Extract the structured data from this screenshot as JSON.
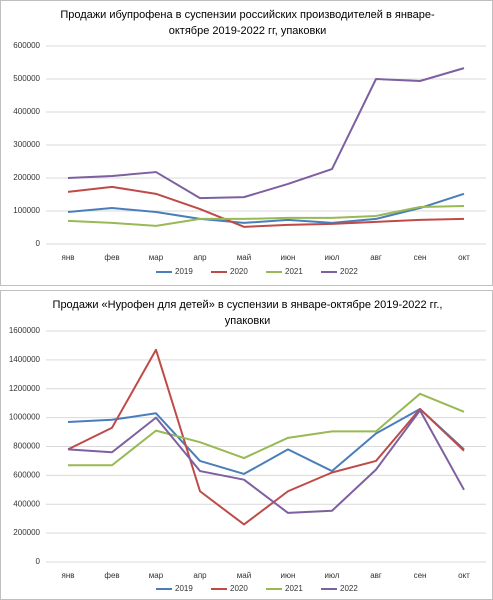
{
  "chart_data": [
    {
      "type": "line",
      "title": "Продажи ибупрофена в суспензии российских производителей в январе-октябре 2019-2022 гг, упаковки",
      "categories": [
        "янв",
        "фев",
        "мар",
        "апр",
        "май",
        "июн",
        "июл",
        "авг",
        "сен",
        "окт"
      ],
      "ylim": [
        0,
        600000
      ],
      "yticks": [
        0,
        100000,
        200000,
        300000,
        400000,
        500000,
        600000
      ],
      "grid": true,
      "legend": "bottom",
      "series": [
        {
          "name": "2019",
          "color": "#4a7ebb",
          "values": [
            97000,
            109000,
            97000,
            76000,
            64000,
            73000,
            64000,
            76000,
            109000,
            152000
          ]
        },
        {
          "name": "2020",
          "color": "#be4b48",
          "values": [
            158000,
            173000,
            152000,
            106000,
            52000,
            58000,
            61000,
            67000,
            73000,
            76000
          ]
        },
        {
          "name": "2021",
          "color": "#98b954",
          "values": [
            70000,
            64000,
            55000,
            76000,
            76000,
            79000,
            79000,
            85000,
            112000,
            115000
          ]
        },
        {
          "name": "2022",
          "color": "#7d60a0",
          "values": [
            200000,
            206000,
            218000,
            139000,
            142000,
            182000,
            227000,
            500000,
            494000,
            533000
          ]
        }
      ]
    },
    {
      "type": "line",
      "title": "Продажи «Нурофен для детей» в суспензии в январе-октябре 2019-2022 гг., упаковки",
      "categories": [
        "янв",
        "фев",
        "мар",
        "апр",
        "май",
        "июн",
        "июл",
        "авг",
        "сен",
        "окт"
      ],
      "ylim": [
        0,
        1600000
      ],
      "yticks": [
        0,
        200000,
        400000,
        600000,
        800000,
        1000000,
        1200000,
        1400000,
        1600000
      ],
      "grid": true,
      "legend": "bottom",
      "series": [
        {
          "name": "2019",
          "color": "#4a7ebb",
          "values": [
            970000,
            985000,
            1030000,
            700000,
            610000,
            780000,
            630000,
            890000,
            1060000,
            780000
          ]
        },
        {
          "name": "2020",
          "color": "#be4b48",
          "values": [
            780000,
            930000,
            1470000,
            490000,
            260000,
            490000,
            620000,
            700000,
            1060000,
            770000
          ]
        },
        {
          "name": "2021",
          "color": "#98b954",
          "values": [
            670000,
            670000,
            910000,
            830000,
            720000,
            860000,
            905000,
            905000,
            1165000,
            1040000
          ]
        },
        {
          "name": "2022",
          "color": "#7d60a0",
          "values": [
            780000,
            760000,
            1000000,
            630000,
            570000,
            340000,
            355000,
            640000,
            1050000,
            500000
          ]
        }
      ]
    }
  ]
}
